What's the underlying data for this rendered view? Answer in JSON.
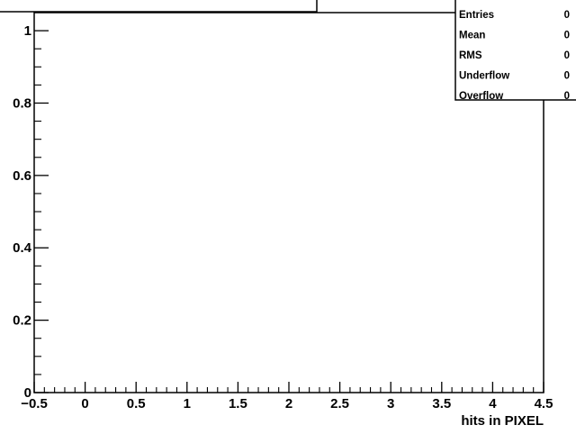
{
  "chart_data": {
    "type": "bar",
    "title": "",
    "xlabel": "hits in PIXEL",
    "ylabel": "",
    "xlim": [
      -0.5,
      4.5
    ],
    "ylim": [
      0,
      1.05
    ],
    "x_ticks": [
      -0.5,
      0,
      0.5,
      1,
      1.5,
      2,
      2.5,
      3,
      3.5,
      4,
      4.5
    ],
    "x_tick_labels": [
      "−0.5",
      "0",
      "0.5",
      "1",
      "1.5",
      "2",
      "2.5",
      "3",
      "3.5",
      "4",
      "4.5"
    ],
    "y_ticks": [
      0,
      0.2,
      0.4,
      0.6,
      0.8,
      1
    ],
    "y_tick_labels": [
      "0",
      "0.2",
      "0.4",
      "0.6",
      "0.8",
      "1"
    ],
    "categories": [],
    "values": [],
    "grid": false,
    "stats_box": {
      "rows": [
        {
          "label": "Entries",
          "value": "0"
        },
        {
          "label": "Mean",
          "value": "0"
        },
        {
          "label": "RMS",
          "value": "0"
        },
        {
          "label": "Underflow",
          "value": "0"
        },
        {
          "label": "Overflow",
          "value": "0"
        }
      ]
    }
  }
}
